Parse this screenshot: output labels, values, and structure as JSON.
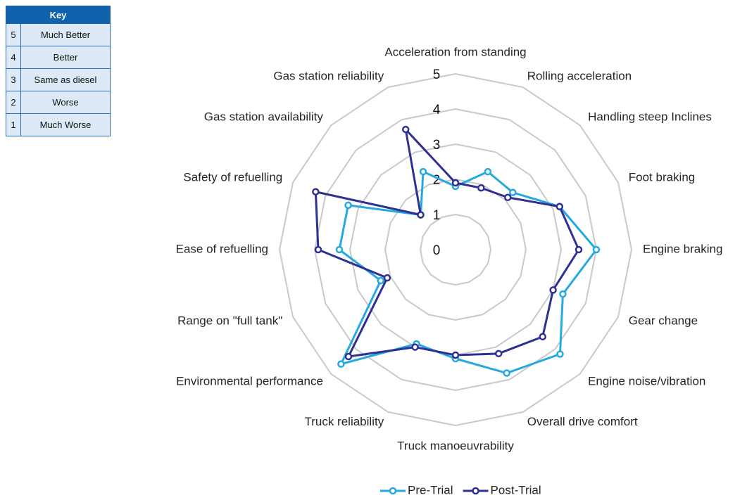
{
  "key": {
    "title": "Key",
    "rows": [
      [
        "5",
        "Much Better"
      ],
      [
        "4",
        "Better"
      ],
      [
        "3",
        "Same as diesel"
      ],
      [
        "2",
        "Worse"
      ],
      [
        "1",
        "Much Worse"
      ]
    ]
  },
  "chart_data": {
    "type": "radar",
    "categories": [
      "Acceleration from standing",
      "Rolling acceleration",
      "Handling steep Inclines",
      "Foot braking",
      "Engine braking",
      "Gear change",
      "Engine noise/vibration",
      "Overall drive comfort",
      "Truck manoeuvrability",
      "Truck reliability",
      "Environmental performance",
      "Range on \"full tank\"",
      "Ease of refuelling",
      "Safety of refuelling",
      "Gas station availability",
      "Gas station reliability"
    ],
    "series": [
      {
        "name": "Pre-Trial",
        "color": "#25a9df",
        "values": [
          1.8,
          2.4,
          2.3,
          3.2,
          4.0,
          3.3,
          4.2,
          3.8,
          3.1,
          2.9,
          4.6,
          2.3,
          3.3,
          3.3,
          1.4,
          2.4
        ]
      },
      {
        "name": "Post-Trial",
        "color": "#2e3192",
        "values": [
          1.9,
          1.9,
          2.1,
          3.2,
          3.5,
          3.0,
          3.5,
          3.2,
          3.0,
          3.0,
          4.3,
          2.1,
          3.9,
          4.3,
          1.4,
          3.7
        ]
      }
    ],
    "rlim": [
      0,
      5
    ],
    "rticks": [
      0,
      1,
      2,
      3,
      4,
      5
    ],
    "grid": true,
    "legend": "bottom"
  }
}
